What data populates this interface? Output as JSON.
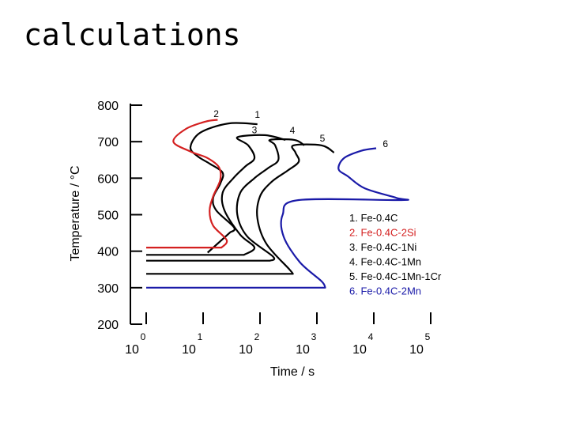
{
  "slide_title": "calculations",
  "colors": {
    "black": "#000000",
    "red": "#d42020",
    "blue": "#1a1aa8"
  },
  "chart_data": {
    "type": "line",
    "xlabel": "Time / s",
    "ylabel": "Temperature / °C",
    "x_scale": "log",
    "xlim": [
      1,
      100000
    ],
    "ylim": [
      200,
      800
    ],
    "y_ticks": [
      800,
      700,
      600,
      500,
      400,
      300,
      200
    ],
    "x_ticks": [
      {
        "base": "10",
        "exp": "0"
      },
      {
        "base": "10",
        "exp": "1"
      },
      {
        "base": "10",
        "exp": "2"
      },
      {
        "base": "10",
        "exp": "3"
      },
      {
        "base": "10",
        "exp": "4"
      },
      {
        "base": "10",
        "exp": "5"
      }
    ],
    "series": [
      {
        "name": "1",
        "legend": "1. Fe-0.4C",
        "color": "#000000",
        "points": [
          [
            12,
            396
          ],
          [
            30,
            452
          ],
          [
            35,
            465
          ],
          [
            17,
            512
          ],
          [
            15,
            546
          ],
          [
            20,
            585
          ],
          [
            22,
            615
          ],
          [
            13,
            640
          ],
          [
            8,
            660
          ],
          [
            6,
            685
          ],
          [
            9,
            725
          ],
          [
            28,
            750
          ],
          [
            90,
            748
          ]
        ]
      },
      {
        "name": "2",
        "legend": "2. Fe-0.4C-2Si",
        "color": "#d42020",
        "points": [
          [
            1,
            410
          ],
          [
            21,
            410
          ],
          [
            26,
            430
          ],
          [
            15,
            470
          ],
          [
            13,
            510
          ],
          [
            15,
            550
          ],
          [
            20,
            595
          ],
          [
            19,
            630
          ],
          [
            12,
            655
          ],
          [
            6,
            673
          ],
          [
            3,
            700
          ],
          [
            5,
            735
          ],
          [
            11,
            755
          ],
          [
            18,
            760
          ]
        ]
      },
      {
        "name": "3",
        "legend": "3. Fe-0.4C-1Ni",
        "color": "#000000",
        "points": [
          [
            1,
            390
          ],
          [
            52,
            390
          ],
          [
            80,
            410
          ],
          [
            45,
            445
          ],
          [
            24,
            510
          ],
          [
            22,
            560
          ],
          [
            34,
            600
          ],
          [
            55,
            632
          ],
          [
            80,
            655
          ],
          [
            62,
            690
          ],
          [
            40,
            712
          ],
          [
            120,
            718
          ],
          [
            280,
            705
          ]
        ]
      },
      {
        "name": "4",
        "legend": "4. Fe-0.4C-1Mn",
        "color": "#000000",
        "points": [
          [
            1,
            374
          ],
          [
            150,
            374
          ],
          [
            170,
            385
          ],
          [
            60,
            440
          ],
          [
            40,
            500
          ],
          [
            45,
            560
          ],
          [
            80,
            600
          ],
          [
            140,
            628
          ],
          [
            210,
            650
          ],
          [
            185,
            690
          ],
          [
            150,
            705
          ],
          [
            400,
            705
          ],
          [
            600,
            690
          ]
        ]
      },
      {
        "name": "5",
        "legend": "5. Fe-0.4C-1Mn-1Cr",
        "color": "#000000",
        "points": [
          [
            1,
            338
          ],
          [
            380,
            338
          ],
          [
            330,
            350
          ],
          [
            130,
            420
          ],
          [
            90,
            490
          ],
          [
            100,
            550
          ],
          [
            160,
            590
          ],
          [
            300,
            620
          ],
          [
            480,
            645
          ],
          [
            420,
            670
          ],
          [
            390,
            690
          ],
          [
            1200,
            690
          ],
          [
            2000,
            670
          ]
        ]
      },
      {
        "name": "6",
        "legend": "6. Fe-0.4C-2Mn",
        "color": "#1a1aa8",
        "points": [
          [
            1,
            300
          ],
          [
            1400,
            300
          ],
          [
            1200,
            318
          ],
          [
            500,
            370
          ],
          [
            260,
            440
          ],
          [
            250,
            500
          ],
          [
            480,
            540
          ],
          [
            30000,
            540
          ],
          [
            25000,
            546
          ],
          [
            7000,
            572
          ],
          [
            3500,
            605
          ],
          [
            2400,
            625
          ],
          [
            3000,
            655
          ],
          [
            6000,
            675
          ],
          [
            11000,
            682
          ]
        ]
      }
    ],
    "curve_labels": [
      {
        "text": "2",
        "x": 17,
        "y": 768
      },
      {
        "text": "1",
        "x": 90,
        "y": 765
      },
      {
        "text": "3",
        "x": 80,
        "y": 723
      },
      {
        "text": "4",
        "x": 370,
        "y": 722
      },
      {
        "text": "5",
        "x": 1250,
        "y": 700
      },
      {
        "text": "6",
        "x": 16000,
        "y": 685
      }
    ],
    "legend_placement": "right"
  }
}
